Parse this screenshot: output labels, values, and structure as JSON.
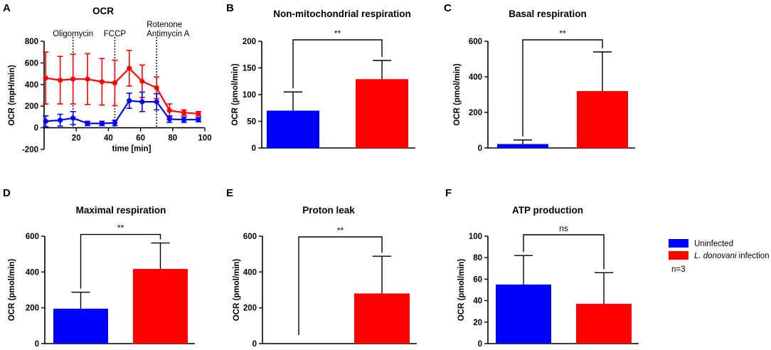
{
  "colors": {
    "uninfected": "#0000ff",
    "infected": "#ff0000",
    "axis": "#000000"
  },
  "legend": {
    "items": [
      {
        "label": "Uninfected",
        "color": "#0000ff"
      },
      {
        "label_italic": "L. donovani",
        "label_rest": " infection",
        "color": "#ff0000"
      }
    ],
    "n_label": "n=3"
  },
  "chart_data": [
    {
      "letter": "A",
      "type": "line",
      "title": "OCR",
      "xlabel": "time [min]",
      "ylabel": "OCR (mpH/min)",
      "xlim": [
        0,
        100
      ],
      "ylim": [
        -200,
        800
      ],
      "xticks": [
        20,
        40,
        60,
        80,
        100
      ],
      "yticks": [
        -200,
        0,
        200,
        400,
        600,
        800
      ],
      "injections": [
        {
          "x": 18,
          "label": [
            "Oligomycin"
          ]
        },
        {
          "x": 44,
          "label": [
            "FCCP"
          ]
        },
        {
          "x": 70,
          "label": [
            "Rotenone",
            "Antimycin A"
          ]
        }
      ],
      "series": [
        {
          "name": "L. donovani infection",
          "color": "#ff0000",
          "x": [
            1,
            10,
            18,
            27,
            36,
            44,
            53,
            61,
            70,
            78,
            87,
            96
          ],
          "y": [
            460,
            440,
            450,
            450,
            425,
            415,
            550,
            430,
            370,
            160,
            140,
            130
          ],
          "err": [
            240,
            220,
            230,
            235,
            215,
            210,
            165,
            150,
            100,
            60,
            25,
            20
          ]
        },
        {
          "name": "Uninfected",
          "color": "#0000ff",
          "x": [
            1,
            10,
            18,
            27,
            36,
            44,
            53,
            61,
            70,
            78,
            87,
            96
          ],
          "y": [
            60,
            70,
            90,
            40,
            40,
            45,
            250,
            240,
            240,
            80,
            75,
            75
          ],
          "err": [
            50,
            55,
            60,
            20,
            20,
            25,
            70,
            90,
            75,
            30,
            25,
            20
          ]
        }
      ]
    },
    {
      "letter": "B",
      "type": "bar",
      "title": "Non-mitochondrial respiration",
      "ylabel": "OCR (pmol/min)",
      "ylim": [
        0,
        200
      ],
      "yticks": [
        0,
        50,
        100,
        150,
        200
      ],
      "categories": [
        "Uninfected",
        "L. donovani infection"
      ],
      "values": [
        70,
        129
      ],
      "errors": [
        35,
        35
      ],
      "significance": "**"
    },
    {
      "letter": "C",
      "type": "bar",
      "title": "Basal respiration",
      "ylabel": "OCR (pmol/min)",
      "ylim": [
        0,
        600
      ],
      "yticks": [
        0,
        200,
        400,
        600
      ],
      "categories": [
        "Uninfected",
        "L. donovani infection"
      ],
      "values": [
        22,
        320
      ],
      "errors": [
        23,
        220
      ],
      "significance": "**"
    },
    {
      "letter": "D",
      "type": "bar",
      "title": "Maximal respiration",
      "ylabel": "OCR (pmol/min)",
      "ylim": [
        0,
        600
      ],
      "yticks": [
        0,
        200,
        400,
        600
      ],
      "categories": [
        "Uninfected",
        "L. donovani infection"
      ],
      "values": [
        195,
        417
      ],
      "errors": [
        92,
        145
      ],
      "significance": "**"
    },
    {
      "letter": "E",
      "type": "bar",
      "title": "Proton leak",
      "ylabel": "OCR (pmol/min)",
      "ylim": [
        0,
        600
      ],
      "yticks": [
        0,
        200,
        400,
        600
      ],
      "categories": [
        "Uninfected",
        "L. donovani infection"
      ],
      "values": [
        0,
        280
      ],
      "errors": [
        0,
        208
      ],
      "significance": "**"
    },
    {
      "letter": "F",
      "type": "bar",
      "title": "ATP production",
      "ylabel": "OCR (pmol/min)",
      "ylim": [
        0,
        100
      ],
      "yticks": [
        0,
        20,
        40,
        60,
        80,
        100
      ],
      "categories": [
        "Uninfected",
        "L. donovani infection"
      ],
      "values": [
        55,
        37
      ],
      "errors": [
        27,
        29
      ],
      "significance": "ns"
    }
  ]
}
